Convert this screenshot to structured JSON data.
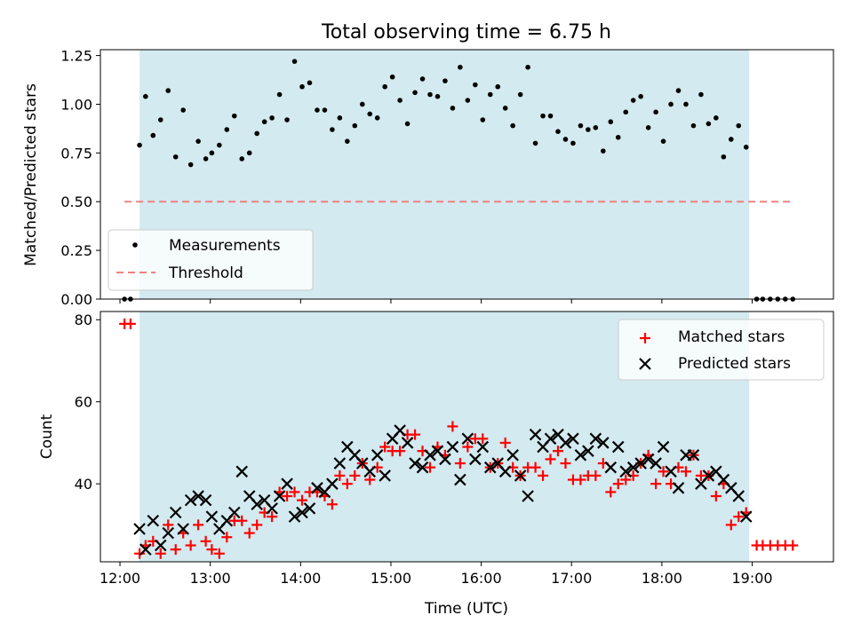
{
  "chart_data": [
    {
      "type": "scatter",
      "title": "Total observing time = 6.75 h",
      "ylabel": "Matched/Predicted stars",
      "xlabel": "",
      "xlim": [
        "11:47",
        "19:54"
      ],
      "ylim": [
        0,
        1.28
      ],
      "yticks": [
        "0.00",
        "0.25",
        "0.50",
        "0.75",
        "1.00",
        "1.25"
      ],
      "xticks": [
        "12:00",
        "13:00",
        "14:00",
        "15:00",
        "16:00",
        "17:00",
        "18:00",
        "19:00"
      ],
      "observing_window": [
        "12:13",
        "18:58"
      ],
      "shade_color": "#d3eaf0",
      "legend_position": "lower-left",
      "legend": [
        "Measurements",
        "Threshold"
      ],
      "threshold": {
        "value": 0.5,
        "x": [
          "12:03",
          "19:27"
        ],
        "color": "#f08080"
      },
      "series": [
        {
          "name": "Measurements",
          "color": "#000000",
          "x": [
            "12:03",
            "12:07",
            "12:13",
            "12:17",
            "12:22",
            "12:27",
            "12:32",
            "12:37",
            "12:42",
            "12:47",
            "12:52",
            "12:57",
            "13:01",
            "13:06",
            "13:11",
            "13:16",
            "13:21",
            "13:26",
            "13:31",
            "13:36",
            "13:41",
            "13:46",
            "13:51",
            "13:56",
            "14:01",
            "14:06",
            "14:11",
            "14:16",
            "14:21",
            "14:26",
            "14:31",
            "14:36",
            "14:41",
            "14:46",
            "14:51",
            "14:56",
            "15:01",
            "15:06",
            "15:11",
            "15:16",
            "15:21",
            "15:26",
            "15:31",
            "15:36",
            "15:41",
            "15:46",
            "15:51",
            "15:56",
            "16:01",
            "16:06",
            "16:11",
            "16:16",
            "16:21",
            "16:26",
            "16:31",
            "16:36",
            "16:41",
            "16:46",
            "16:51",
            "16:56",
            "17:01",
            "17:06",
            "17:11",
            "17:16",
            "17:21",
            "17:26",
            "17:31",
            "17:36",
            "17:41",
            "17:46",
            "17:51",
            "17:56",
            "18:01",
            "18:06",
            "18:11",
            "18:16",
            "18:21",
            "18:26",
            "18:31",
            "18:36",
            "18:41",
            "18:46",
            "18:51",
            "18:56",
            "19:03",
            "19:07",
            "19:12",
            "19:17",
            "19:22",
            "19:27"
          ],
          "y": [
            0,
            0,
            0.79,
            1.04,
            0.84,
            0.92,
            1.07,
            0.73,
            0.97,
            0.69,
            0.81,
            0.72,
            0.75,
            0.79,
            0.87,
            0.94,
            0.72,
            0.75,
            0.85,
            0.91,
            0.93,
            1.05,
            0.92,
            1.22,
            1.09,
            1.11,
            0.97,
            0.97,
            0.87,
            0.93,
            0.81,
            0.89,
            1.0,
            0.95,
            0.93,
            1.09,
            1.14,
            1.02,
            0.9,
            1.06,
            1.13,
            1.05,
            1.04,
            1.12,
            0.98,
            1.19,
            1.02,
            1.1,
            0.92,
            1.05,
            1.09,
            0.98,
            0.89,
            1.05,
            1.19,
            0.8,
            0.94,
            0.94,
            0.86,
            0.82,
            0.8,
            0.89,
            0.87,
            0.88,
            0.76,
            0.91,
            0.83,
            0.96,
            1.02,
            1.04,
            0.88,
            0.96,
            0.81,
            1.0,
            1.07,
            1.0,
            0.89,
            1.05,
            0.9,
            0.93,
            0.73,
            0.82,
            0.89,
            0.78,
            0,
            0,
            0,
            0,
            0,
            0
          ]
        }
      ]
    },
    {
      "type": "scatter",
      "title": "",
      "ylabel": "Count",
      "xlabel": "Time (UTC)",
      "xlim": [
        "11:47",
        "19:54"
      ],
      "ylim": [
        21,
        82
      ],
      "yticks": [
        "40",
        "60",
        "80"
      ],
      "xticks": [
        "12:00",
        "13:00",
        "14:00",
        "15:00",
        "16:00",
        "17:00",
        "18:00",
        "19:00"
      ],
      "observing_window": [
        "12:13",
        "18:58"
      ],
      "legend_position": "upper-right",
      "legend": [
        "Matched stars",
        "Predicted stars"
      ],
      "series": [
        {
          "name": "Matched stars",
          "marker": "+",
          "color": "#ff0000",
          "x": [
            "12:03",
            "12:07",
            "12:13",
            "12:17",
            "12:22",
            "12:27",
            "12:32",
            "12:37",
            "12:42",
            "12:47",
            "12:52",
            "12:57",
            "13:01",
            "13:06",
            "13:11",
            "13:16",
            "13:21",
            "13:26",
            "13:31",
            "13:36",
            "13:41",
            "13:46",
            "13:51",
            "13:56",
            "14:01",
            "14:06",
            "14:11",
            "14:16",
            "14:21",
            "14:26",
            "14:31",
            "14:36",
            "14:41",
            "14:46",
            "14:51",
            "14:56",
            "15:01",
            "15:06",
            "15:11",
            "15:16",
            "15:21",
            "15:26",
            "15:31",
            "15:36",
            "15:41",
            "15:46",
            "15:51",
            "15:56",
            "16:01",
            "16:06",
            "16:11",
            "16:16",
            "16:21",
            "16:26",
            "16:31",
            "16:36",
            "16:41",
            "16:46",
            "16:51",
            "16:56",
            "17:01",
            "17:06",
            "17:11",
            "17:16",
            "17:21",
            "17:26",
            "17:31",
            "17:36",
            "17:41",
            "17:46",
            "17:51",
            "17:56",
            "18:01",
            "18:06",
            "18:11",
            "18:16",
            "18:21",
            "18:26",
            "18:31",
            "18:36",
            "18:41",
            "18:46",
            "18:51",
            "18:56",
            "19:03",
            "19:07",
            "19:12",
            "19:17",
            "19:22",
            "19:27"
          ],
          "y": [
            79,
            79,
            23,
            25,
            26,
            23,
            30,
            24,
            28,
            25,
            30,
            26,
            24,
            23,
            27,
            31,
            31,
            28,
            30,
            33,
            32,
            38,
            37,
            38,
            36,
            38,
            38,
            37,
            35,
            42,
            40,
            42,
            45,
            41,
            44,
            49,
            48,
            48,
            52,
            52,
            48,
            44,
            49,
            47,
            54,
            45,
            49,
            51,
            51,
            44,
            45,
            50,
            44,
            42,
            44,
            44,
            42,
            46,
            48,
            45,
            41,
            41,
            42,
            42,
            45,
            38,
            40,
            41,
            42,
            45,
            47,
            40,
            43,
            40,
            44,
            43,
            47,
            42,
            42,
            37,
            40,
            30,
            32,
            33,
            25,
            25,
            25,
            25,
            25,
            25
          ]
        },
        {
          "name": "Predicted stars",
          "marker": "x",
          "color": "#000000",
          "x": [
            "12:13",
            "12:17",
            "12:22",
            "12:27",
            "12:32",
            "12:37",
            "12:42",
            "12:47",
            "12:52",
            "12:57",
            "13:01",
            "13:06",
            "13:11",
            "13:16",
            "13:21",
            "13:26",
            "13:31",
            "13:36",
            "13:41",
            "13:46",
            "13:51",
            "13:56",
            "14:01",
            "14:06",
            "14:11",
            "14:16",
            "14:21",
            "14:26",
            "14:31",
            "14:36",
            "14:41",
            "14:46",
            "14:51",
            "14:56",
            "15:01",
            "15:06",
            "15:11",
            "15:16",
            "15:21",
            "15:26",
            "15:31",
            "15:36",
            "15:41",
            "15:46",
            "15:51",
            "15:56",
            "16:01",
            "16:06",
            "16:11",
            "16:16",
            "16:21",
            "16:26",
            "16:31",
            "16:36",
            "16:41",
            "16:46",
            "16:51",
            "16:56",
            "17:01",
            "17:06",
            "17:11",
            "17:16",
            "17:21",
            "17:26",
            "17:31",
            "17:36",
            "17:41",
            "17:46",
            "17:51",
            "17:56",
            "18:01",
            "18:06",
            "18:11",
            "18:16",
            "18:21",
            "18:26",
            "18:31",
            "18:36",
            "18:41",
            "18:46",
            "18:51",
            "18:56"
          ],
          "y": [
            29,
            24,
            31,
            25,
            28,
            33,
            29,
            36,
            37,
            36,
            32,
            29,
            31,
            33,
            43,
            37,
            35,
            36,
            34,
            37,
            40,
            32,
            33,
            34,
            39,
            38,
            40,
            45,
            49,
            47,
            45,
            43,
            47,
            42,
            51,
            53,
            50,
            45,
            44,
            47,
            48,
            46,
            49,
            41,
            51,
            46,
            49,
            44,
            45,
            43,
            47,
            42,
            37,
            52,
            49,
            51,
            52,
            50,
            51,
            47,
            48,
            51,
            50,
            44,
            49,
            43,
            44,
            45,
            46,
            45,
            49,
            43,
            39,
            47,
            47,
            40,
            42,
            43,
            41,
            39,
            37,
            32
          ]
        }
      ]
    }
  ]
}
